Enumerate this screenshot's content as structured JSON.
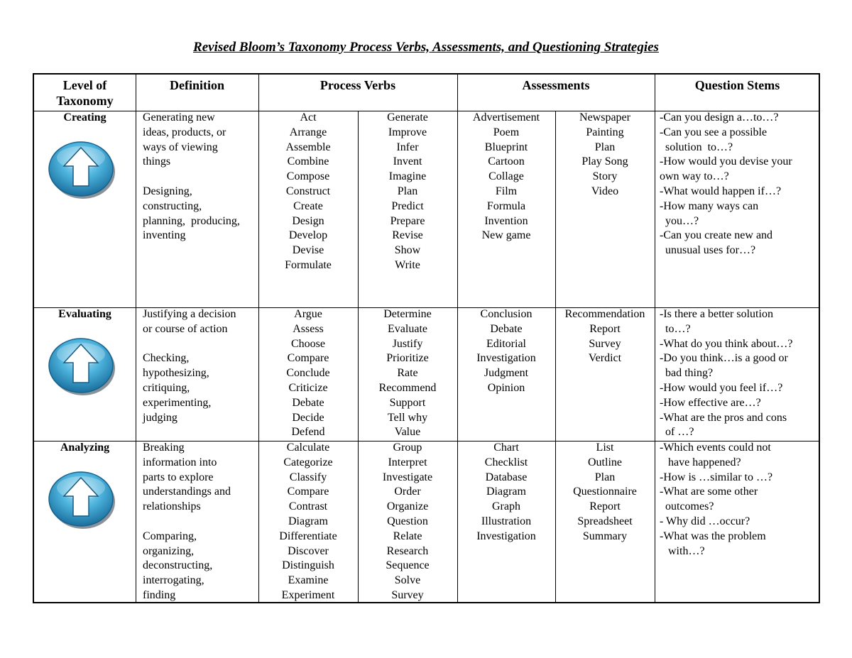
{
  "title": "Revised Bloom’s Taxonomy Process Verbs, Assessments, and Questioning Strategies",
  "headers": {
    "level": "Level of\nTaxonomy",
    "definition": "Definition",
    "verbs": "Process Verbs",
    "assessments": "Assessments",
    "stems": "Question Stems"
  },
  "icon": "up-arrow-button-icon",
  "rows": [
    {
      "level": "Creating",
      "definition": [
        "Generating new",
        "ideas, products, or",
        "ways of viewing",
        "things",
        "",
        "Designing,",
        "constructing,",
        "planning,  producing,",
        "inventing"
      ],
      "verbs1": [
        "Act",
        "Arrange",
        "Assemble",
        "Combine",
        "Compose",
        "Construct",
        "Create",
        "Design",
        "Develop",
        "Devise",
        "Formulate"
      ],
      "verbs2": [
        "Generate",
        "Improve",
        "Infer",
        "Invent",
        "Imagine",
        "Plan",
        "Predict",
        "Prepare",
        "Revise",
        "Show",
        "Write"
      ],
      "assess1": [
        "Advertisement",
        "Poem",
        "Blueprint",
        "Cartoon",
        "Collage",
        "Film",
        "Formula",
        "Invention",
        "New game"
      ],
      "assess2": [
        "Newspaper",
        "Painting",
        "Plan",
        "Play Song",
        "Story",
        "Video"
      ],
      "stems": [
        "-Can you design a…to…?",
        "-Can you see a possible",
        "  solution  to…?",
        "-How would you devise your",
        "own way to…?",
        "-What would happen if…?",
        "-How many ways can",
        "  you…?",
        "-Can you create new and",
        "  unusual uses for…?"
      ]
    },
    {
      "level": "Evaluating",
      "definition": [
        "Justifying a decision",
        "or course of action",
        "",
        "Checking,",
        "hypothesizing,",
        "critiquing,",
        "experimenting,",
        "judging"
      ],
      "verbs1": [
        "Argue",
        "Assess",
        "Choose",
        "Compare",
        "Conclude",
        "Criticize",
        "Debate",
        "Decide",
        "Defend"
      ],
      "verbs2": [
        "Determine",
        "Evaluate",
        "Justify",
        "Prioritize",
        "Rate",
        "Recommend",
        "Support",
        "Tell why",
        "Value"
      ],
      "assess1": [
        "Conclusion",
        "Debate",
        "Editorial",
        "Investigation",
        "Judgment",
        "Opinion"
      ],
      "assess2": [
        "Recommendation",
        "Report",
        "Survey",
        "Verdict"
      ],
      "stems": [
        "-Is there a better solution",
        "  to…?",
        "-What do you think about…?",
        "-Do you think…is a good or",
        "  bad thing?",
        "-How would you feel if…?",
        "-How effective are…?",
        "-What are the pros and cons",
        "  of …?"
      ]
    },
    {
      "level": "Analyzing",
      "definition": [
        "Breaking",
        "information into",
        "parts to explore",
        "understandings and",
        "relationships",
        "",
        "Comparing,",
        "organizing,",
        "deconstructing,",
        "interrogating,",
        "finding"
      ],
      "verbs1": [
        "Calculate",
        "Categorize",
        "Classify",
        "Compare",
        "Contrast",
        "Diagram",
        "Differentiate",
        "Discover",
        "Distinguish",
        "Examine",
        "Experiment"
      ],
      "verbs2": [
        "Group",
        "Interpret",
        "Investigate",
        "Order",
        "Organize",
        "Question",
        "Relate",
        "Research",
        "Sequence",
        "Solve",
        "Survey"
      ],
      "assess1": [
        "Chart",
        "Checklist",
        "Database",
        "Diagram",
        "Graph",
        "Illustration",
        "Investigation"
      ],
      "assess2": [
        "List",
        "Outline",
        "Plan",
        "Questionnaire",
        "Report",
        "Spreadsheet",
        "Summary"
      ],
      "stems": [
        "-Which events could not",
        "   have happened?",
        "-How is …similar to …?",
        "-What are some other",
        "  outcomes?",
        "- Why did …occur?",
        "-What was the problem",
        "   with…?"
      ]
    }
  ]
}
